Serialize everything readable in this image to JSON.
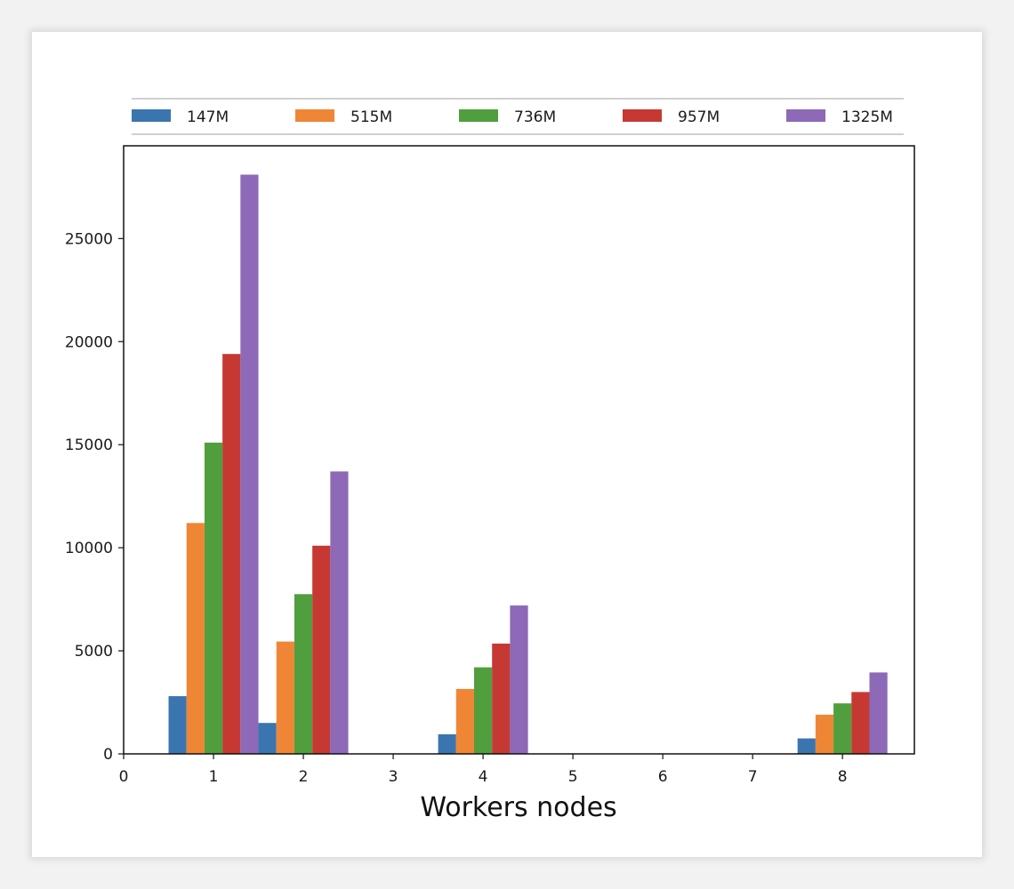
{
  "chart_data": {
    "type": "bar",
    "title": "",
    "xlabel": "Workers nodes",
    "ylabel": "",
    "categories": [
      1,
      2,
      4,
      8
    ],
    "x_ticks": [
      "0",
      "1",
      "2",
      "3",
      "4",
      "5",
      "6",
      "7",
      "8"
    ],
    "xlim": [
      0,
      8.8
    ],
    "y_ticks": [
      "0",
      "5000",
      "10000",
      "15000",
      "20000",
      "25000"
    ],
    "ylim": [
      0,
      29500
    ],
    "legend_placement": "top",
    "series": [
      {
        "name": "147M",
        "color": "#3b75af",
        "values": [
          2800,
          1500,
          950,
          750
        ]
      },
      {
        "name": "515M",
        "color": "#ef8636",
        "values": [
          11200,
          5450,
          3150,
          1900
        ]
      },
      {
        "name": "736M",
        "color": "#519e3e",
        "values": [
          15100,
          7750,
          4200,
          2450
        ]
      },
      {
        "name": "957M",
        "color": "#c53932",
        "values": [
          19400,
          10100,
          5350,
          3000
        ]
      },
      {
        "name": "1325M",
        "color": "#8d69b8",
        "values": [
          28100,
          13700,
          7200,
          3950
        ]
      }
    ]
  }
}
